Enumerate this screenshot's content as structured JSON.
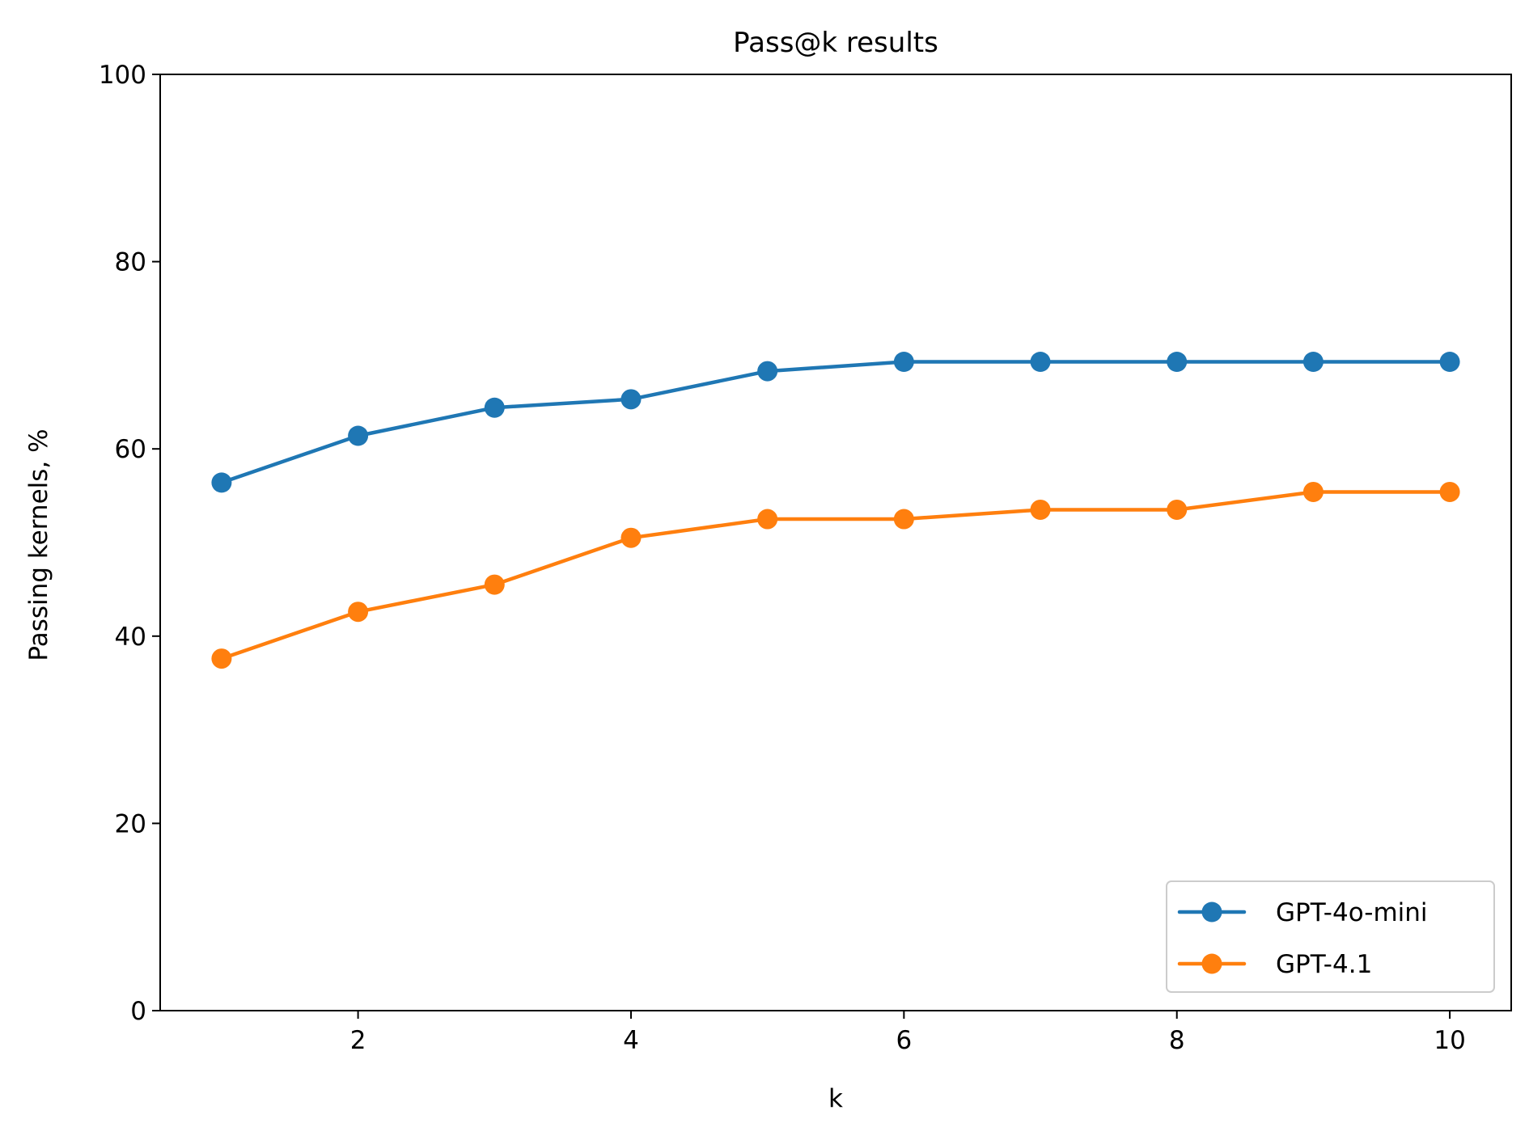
{
  "chart_data": {
    "type": "line",
    "title": "Pass@k results",
    "xlabel": "k",
    "ylabel": "Passing kernels, %",
    "xlim": [
      0.55,
      10.45
    ],
    "ylim": [
      0,
      100
    ],
    "xticks": [
      2,
      4,
      6,
      8,
      10
    ],
    "yticks": [
      0,
      20,
      40,
      60,
      80,
      100
    ],
    "grid": false,
    "legend_position": "lower-right",
    "x": [
      1,
      2,
      3,
      4,
      5,
      6,
      7,
      8,
      9,
      10
    ],
    "series": [
      {
        "name": "GPT-4o-mini",
        "color": "#1f77b4",
        "values": [
          56.4,
          61.4,
          64.4,
          65.3,
          68.3,
          69.3,
          69.3,
          69.3,
          69.3,
          69.3
        ]
      },
      {
        "name": "GPT-4.1",
        "color": "#ff7f0e",
        "values": [
          37.6,
          42.6,
          45.5,
          50.5,
          52.5,
          52.5,
          53.5,
          53.5,
          55.4,
          55.4
        ]
      }
    ]
  }
}
